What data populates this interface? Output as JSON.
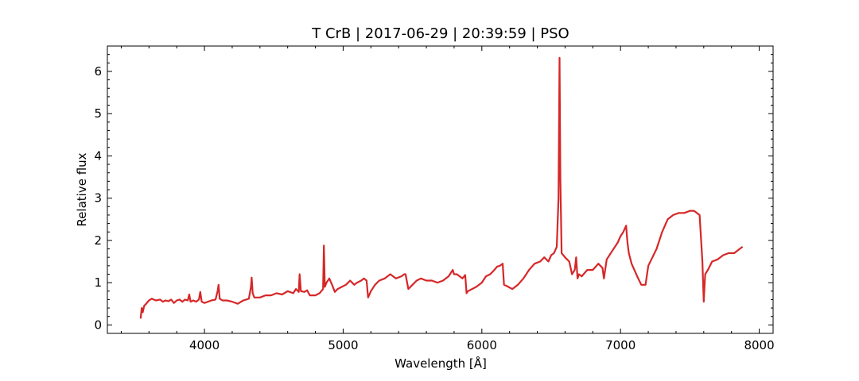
{
  "chart_data": {
    "type": "line",
    "title": "T CrB | 2017-06-29 | 20:39:59 | PSO",
    "xlabel": "Wavelength [Å]",
    "ylabel": "Relative flux",
    "xlim": [
      3300,
      8100
    ],
    "ylim": [
      -0.2,
      6.6
    ],
    "xticks": [
      4000,
      5000,
      6000,
      7000,
      8000
    ],
    "xtick_labels": [
      "4000",
      "5000",
      "6000",
      "7000",
      "8000"
    ],
    "yticks": [
      0,
      1,
      2,
      3,
      4,
      5,
      6
    ],
    "ytick_labels": [
      "0",
      "1",
      "2",
      "3",
      "4",
      "5",
      "6"
    ],
    "grid": false,
    "series": [
      {
        "color": "#d62728",
        "x": [
          3540,
          3548,
          3555,
          3565,
          3580,
          3600,
          3620,
          3650,
          3680,
          3700,
          3720,
          3740,
          3760,
          3780,
          3800,
          3820,
          3840,
          3860,
          3880,
          3890,
          3900,
          3920,
          3940,
          3960,
          3970,
          3980,
          4000,
          4050,
          4080,
          4095,
          4102,
          4110,
          4130,
          4160,
          4200,
          4240,
          4280,
          4300,
          4320,
          4335,
          4340,
          4348,
          4360,
          4400,
          4440,
          4480,
          4520,
          4560,
          4600,
          4640,
          4660,
          4680,
          4686,
          4695,
          4720,
          4740,
          4760,
          4800,
          4830,
          4855,
          4861,
          4868,
          4880,
          4900,
          4920,
          4940,
          4960,
          4990,
          5020,
          5050,
          5080,
          5100,
          5130,
          5150,
          5169,
          5180,
          5200,
          5230,
          5260,
          5300,
          5340,
          5380,
          5420,
          5440,
          5450,
          5470,
          5500,
          5530,
          5560,
          5600,
          5640,
          5680,
          5720,
          5760,
          5790,
          5800,
          5820,
          5840,
          5860,
          5880,
          5890,
          5900,
          5930,
          5960,
          6000,
          6030,
          6060,
          6090,
          6110,
          6130,
          6150,
          6160,
          6180,
          6220,
          6260,
          6300,
          6340,
          6380,
          6420,
          6450,
          6480,
          6500,
          6520,
          6540,
          6553,
          6560,
          6566,
          6575,
          6600,
          6630,
          6650,
          6670,
          6680,
          6690,
          6700,
          6720,
          6760,
          6800,
          6840,
          6870,
          6880,
          6900,
          6940,
          6980,
          7000,
          7020,
          7040,
          7050,
          7060,
          7080,
          7120,
          7150,
          7180,
          7200,
          7230,
          7260,
          7300,
          7340,
          7380,
          7420,
          7460,
          7500,
          7530,
          7570,
          7590,
          7600,
          7610,
          7630,
          7660,
          7700,
          7740,
          7780,
          7820,
          7860,
          7880
        ],
        "y": [
          0.15,
          0.4,
          0.3,
          0.45,
          0.5,
          0.58,
          0.62,
          0.58,
          0.6,
          0.55,
          0.58,
          0.56,
          0.6,
          0.52,
          0.58,
          0.6,
          0.55,
          0.6,
          0.58,
          0.72,
          0.55,
          0.58,
          0.55,
          0.6,
          0.78,
          0.55,
          0.52,
          0.58,
          0.6,
          0.8,
          0.95,
          0.62,
          0.58,
          0.58,
          0.55,
          0.5,
          0.58,
          0.6,
          0.62,
          0.9,
          1.12,
          0.75,
          0.65,
          0.65,
          0.7,
          0.7,
          0.75,
          0.72,
          0.8,
          0.75,
          0.85,
          0.78,
          1.2,
          0.8,
          0.78,
          0.82,
          0.7,
          0.7,
          0.75,
          0.85,
          1.88,
          0.9,
          1.0,
          1.1,
          0.95,
          0.78,
          0.85,
          0.9,
          0.95,
          1.05,
          0.95,
          1.0,
          1.05,
          1.1,
          1.05,
          0.65,
          0.8,
          0.95,
          1.05,
          1.1,
          1.2,
          1.1,
          1.15,
          1.2,
          1.2,
          0.85,
          0.95,
          1.05,
          1.1,
          1.05,
          1.05,
          1.0,
          1.05,
          1.15,
          1.3,
          1.2,
          1.2,
          1.15,
          1.1,
          1.18,
          0.75,
          0.8,
          0.85,
          0.9,
          1.0,
          1.15,
          1.2,
          1.3,
          1.38,
          1.4,
          1.45,
          0.95,
          0.92,
          0.85,
          0.95,
          1.1,
          1.3,
          1.45,
          1.5,
          1.6,
          1.5,
          1.65,
          1.7,
          1.85,
          3.0,
          6.32,
          3.5,
          1.7,
          1.6,
          1.5,
          1.2,
          1.3,
          1.6,
          1.1,
          1.2,
          1.15,
          1.3,
          1.3,
          1.45,
          1.35,
          1.1,
          1.55,
          1.75,
          1.95,
          2.1,
          2.2,
          2.35,
          1.95,
          1.7,
          1.45,
          1.15,
          0.95,
          0.95,
          1.4,
          1.6,
          1.8,
          2.2,
          2.5,
          2.6,
          2.65,
          2.65,
          2.7,
          2.7,
          2.6,
          1.5,
          0.55,
          1.2,
          1.3,
          1.5,
          1.55,
          1.65,
          1.7,
          1.7,
          1.8,
          1.85
        ]
      }
    ]
  }
}
